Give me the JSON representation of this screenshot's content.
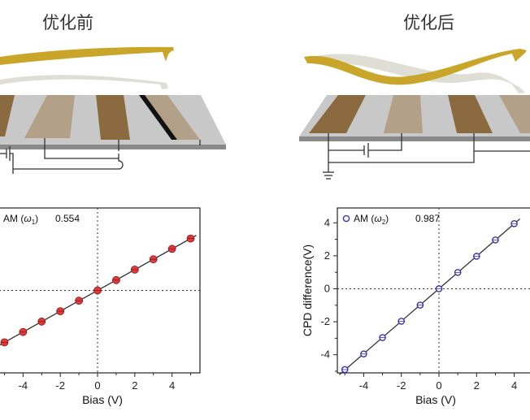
{
  "panels": {
    "left_title": "优化前",
    "right_title": "优化后"
  },
  "colors": {
    "cantilever": "#c9a62a",
    "electrode_dark": "#8a6a3e",
    "electrode_light": "#b3a089",
    "substrate": "#9a9a9a",
    "marker_left": "#e0393b",
    "marker_right": "#3a33b8",
    "fit_line": "#333333"
  },
  "chart_data": [
    {
      "type": "scatter",
      "legend": {
        "marker": "circle-filled",
        "label_prefix": "AM (",
        "label_symbol": "ω",
        "label_sub": "1",
        "label_suffix": ")",
        "value": "0.554",
        "placement": "top-left"
      },
      "x": [
        -5,
        -4,
        -3,
        -2,
        -1,
        0,
        1,
        2,
        3,
        4,
        5
      ],
      "y": [
        -2.77,
        -2.22,
        -1.66,
        -1.11,
        -0.55,
        0,
        0.55,
        1.11,
        1.66,
        2.22,
        2.77
      ],
      "fit": "linear",
      "xlabel": "Bias (V)",
      "xticks": [
        "-4",
        "-2",
        "0",
        "2",
        "4"
      ],
      "yticks": [],
      "xlim": [
        -5.5,
        5.5
      ],
      "ylim": [
        -4.4,
        4.4
      ],
      "crosshair_at_zero": true
    },
    {
      "type": "scatter",
      "legend": {
        "marker": "circle-open",
        "label_prefix": "AM (",
        "label_symbol": "ω",
        "label_sub": "2",
        "label_suffix": ")",
        "value": "0.987",
        "placement": "top-left"
      },
      "x": [
        -5,
        -4,
        -3,
        -2,
        -1,
        0,
        1,
        2,
        3,
        4
      ],
      "y": [
        -4.9,
        -3.95,
        -2.96,
        -1.97,
        -0.99,
        0,
        0.99,
        1.97,
        2.96,
        3.95
      ],
      "fit": "linear",
      "xlabel": "Bias (V)",
      "ylabel": "CPD difference(V)",
      "xticks": [
        "-4",
        "-2",
        "0",
        "2",
        "4"
      ],
      "yticks": [
        "4",
        "2",
        "0",
        "-2",
        "-4"
      ],
      "xlim": [
        -5.4,
        5.4
      ],
      "ylim": [
        -5.1,
        4.9
      ],
      "crosshair_at_zero": true
    }
  ]
}
